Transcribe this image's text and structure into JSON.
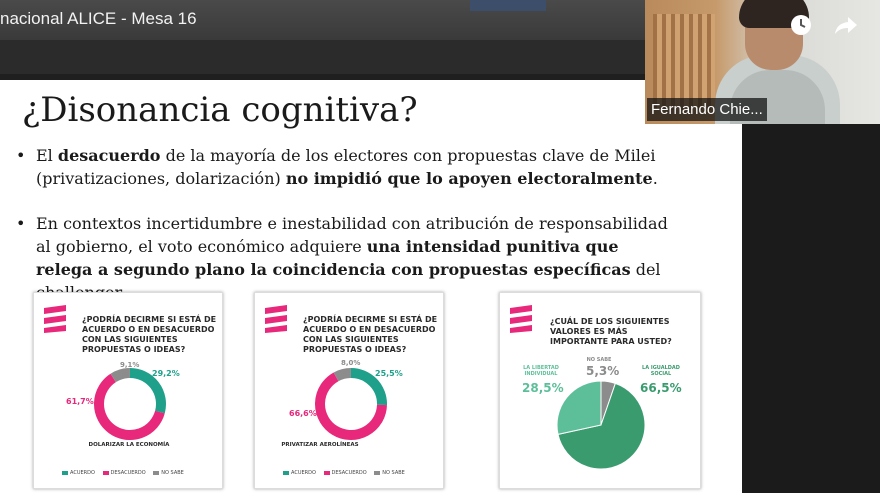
{
  "meeting": {
    "title": "nacional ALICE - Mesa 16"
  },
  "participant": {
    "name": "Fernando Chie..."
  },
  "icons": {
    "watch_later": "clock-icon",
    "share": "share-arrow-icon"
  },
  "slide": {
    "title": "¿Disonancia cognitiva?",
    "bullets": [
      {
        "parts": [
          {
            "text": "El ",
            "bold": false
          },
          {
            "text": "desacuerdo",
            "bold": true
          },
          {
            "text": " de la mayoría de los electores con propuestas clave de Milei (privatizaciones, dolarización) ",
            "bold": false
          },
          {
            "text": "no impidió que lo apoyen electoralmente",
            "bold": true
          },
          {
            "text": ".",
            "bold": false
          }
        ]
      },
      {
        "parts": [
          {
            "text": "En contextos incertidumbre e inestabilidad con atribución de responsabilidad al gobierno, el voto económico adquiere ",
            "bold": false
          },
          {
            "text": "una intensidad punitiva que relega a segundo plano la coincidencia con propuestas específicas",
            "bold": true
          },
          {
            "text": " del challenger.",
            "bold": false
          }
        ]
      }
    ]
  },
  "colors": {
    "acuerdo": "#1fa08a",
    "desacuerdo": "#e8287a",
    "no_sabe": "#8c8c8c",
    "libertad": "#5dbf9a",
    "igualdad": "#3a9b6e",
    "no_sabe_pie": "#8c8c8c"
  },
  "chart_data": [
    {
      "type": "pie",
      "title": "¿Podría decirme si está de acuerdo o en desacuerdo con las siguientes propuestas o ideas?",
      "subtitle": "Dolarizar la economía",
      "categories": [
        "Acuerdo",
        "Desacuerdo",
        "No sabe"
      ],
      "values": [
        29.2,
        61.7,
        9.1
      ],
      "value_labels": [
        "29,2%",
        "61,7%",
        "9,1%"
      ],
      "legend": [
        "ACUERDO",
        "DESACUERDO",
        "NO SABE"
      ],
      "legend_position": "bottom"
    },
    {
      "type": "pie",
      "title": "¿Podría decirme si está de acuerdo o en desacuerdo con las siguientes propuestas o ideas?",
      "subtitle": "Privatizar Aerolíneas",
      "categories": [
        "Acuerdo",
        "Desacuerdo",
        "No sabe"
      ],
      "values": [
        25.5,
        66.6,
        8.0
      ],
      "value_labels": [
        "25,5%",
        "66,6%",
        "8,0%"
      ],
      "legend": [
        "ACUERDO",
        "DESACUERDO",
        "NO SABE"
      ],
      "legend_position": "bottom"
    },
    {
      "type": "pie",
      "title": "¿Cuál de los siguientes valores es más importante para usted?",
      "categories": [
        "La libertad individual",
        "No sabe",
        "La igualdad social"
      ],
      "values": [
        28.5,
        5.3,
        66.5
      ],
      "value_labels": [
        "28,5%",
        "5,3%",
        "66,5%"
      ]
    }
  ]
}
